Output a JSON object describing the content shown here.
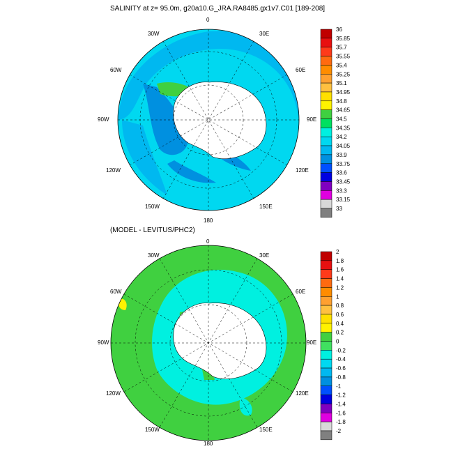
{
  "top_panel": {
    "title": "SALINITY at z=  95.0m, g20a10.G_JRA.RA8485.gx1v7.C01 [189-208]",
    "colorbar": {
      "labels": [
        "36",
        "35.85",
        "35.7",
        "35.55",
        "35.4",
        "35.25",
        "35.1",
        "34.95",
        "34.8",
        "34.65",
        "34.5",
        "34.35",
        "34.2",
        "34.05",
        "33.9",
        "33.75",
        "33.6",
        "33.45",
        "33.3",
        "33.15",
        "33"
      ],
      "colors": [
        "#c00000",
        "#e81010",
        "#ff3a1a",
        "#ff6a10",
        "#ff8c00",
        "#ffa030",
        "#ffc040",
        "#ffe000",
        "#fff200",
        "#40d040",
        "#00e060",
        "#00f0e0",
        "#00d8f0",
        "#00b8f0",
        "#0090e0",
        "#0050ff",
        "#0000e0",
        "#8000c0",
        "#e000e0",
        "#d8d8d8",
        "#808080"
      ]
    }
  },
  "bottom_panel": {
    "title": "(MODEL - LEVITUS/PHC2)",
    "colorbar": {
      "labels": [
        "2",
        "1.8",
        "1.6",
        "1.4",
        "1.2",
        "1",
        "0.8",
        "0.6",
        "0.4",
        "0.2",
        "0",
        "-0.2",
        "-0.4",
        "-0.6",
        "-0.8",
        "-1",
        "-1.2",
        "-1.4",
        "-1.6",
        "-1.8",
        "-2"
      ],
      "colors": [
        "#c00000",
        "#e81010",
        "#ff3a1a",
        "#ff6a10",
        "#ff8c00",
        "#ffa030",
        "#ffc040",
        "#ffe000",
        "#fff200",
        "#40d040",
        "#40e060",
        "#00f0e0",
        "#00d8f0",
        "#00b8f0",
        "#0090e0",
        "#0050ff",
        "#0000e0",
        "#8000c0",
        "#e000e0",
        "#d8d8d8",
        "#808080"
      ]
    }
  },
  "longitude_labels": {
    "top": "0",
    "bottom": "180",
    "left": "90W",
    "right": "90E",
    "ul1": "30W",
    "ul2": "60W",
    "ur1": "30E",
    "ur2": "60E",
    "ll1": "120W",
    "ll2": "150W",
    "lr1": "120E",
    "lr2": "150E"
  }
}
